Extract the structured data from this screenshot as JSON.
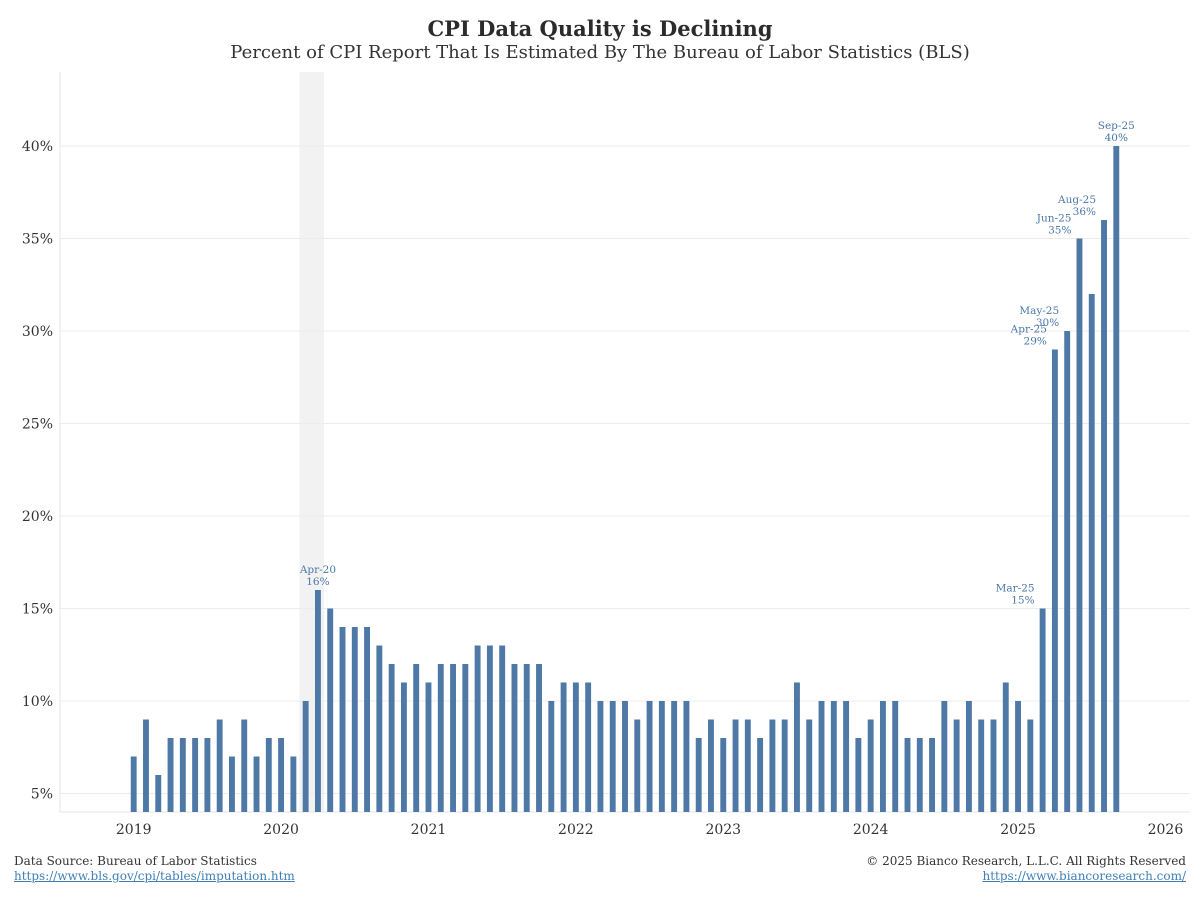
{
  "header": {
    "title": "CPI Data Quality is Declining",
    "subtitle": "Percent of CPI Report That Is Estimated By The Bureau of Labor Statistics (BLS)"
  },
  "footer": {
    "source_label": "Data Source: Bureau of Labor Statistics",
    "source_link": "https://www.bls.gov/cpi/tables/imputation.htm",
    "copyright": "© 2025 Bianco Research, L.L.C. All Rights Reserved",
    "site_link": "https://www.biancoresearch.com/"
  },
  "chart_data": {
    "type": "bar",
    "bar_color": "#4e79a7",
    "shade_color": "#f2f2f2",
    "grid": true,
    "ylim": [
      4,
      44
    ],
    "yticks": [
      5,
      10,
      15,
      20,
      25,
      30,
      35,
      40
    ],
    "ytick_labels": [
      "5%",
      "10%",
      "15%",
      "20%",
      "25%",
      "30%",
      "35%",
      "40%"
    ],
    "xlim": [
      "2018-07",
      "2026-03"
    ],
    "xticks": [
      "2019",
      "2020",
      "2021",
      "2022",
      "2023",
      "2024",
      "2025",
      "2026"
    ],
    "shaded_period": [
      "2020-03",
      "2020-04"
    ],
    "start_month": "2019-01",
    "values": [
      7,
      9,
      6,
      8,
      8,
      8,
      8,
      9,
      7,
      9,
      7,
      8,
      8,
      7,
      10,
      16,
      15,
      14,
      14,
      14,
      13,
      12,
      11,
      12,
      11,
      12,
      12,
      12,
      13,
      13,
      13,
      12,
      12,
      12,
      10,
      11,
      11,
      11,
      10,
      10,
      10,
      9,
      10,
      10,
      10,
      10,
      8,
      9,
      8,
      9,
      9,
      8,
      9,
      9,
      11,
      9,
      10,
      10,
      10,
      8,
      9,
      10,
      10,
      8,
      8,
      8,
      10,
      9,
      10,
      9,
      9,
      11,
      10,
      9,
      15,
      29,
      30,
      35,
      32,
      36,
      40
    ],
    "annotations": [
      {
        "month": "2020-04",
        "label": "Apr-20",
        "value_label": "16%"
      },
      {
        "month": "2025-03",
        "label": "Mar-25",
        "value_label": "15%"
      },
      {
        "month": "2025-04",
        "label": "Apr-25",
        "value_label": "29%"
      },
      {
        "month": "2025-05",
        "label": "May-25",
        "value_label": "30%"
      },
      {
        "month": "2025-06",
        "label": "Jun-25",
        "value_label": "35%"
      },
      {
        "month": "2025-08",
        "label": "Aug-25",
        "value_label": "36%"
      },
      {
        "month": "2025-09",
        "label": "Sep-25",
        "value_label": "40%"
      }
    ]
  }
}
